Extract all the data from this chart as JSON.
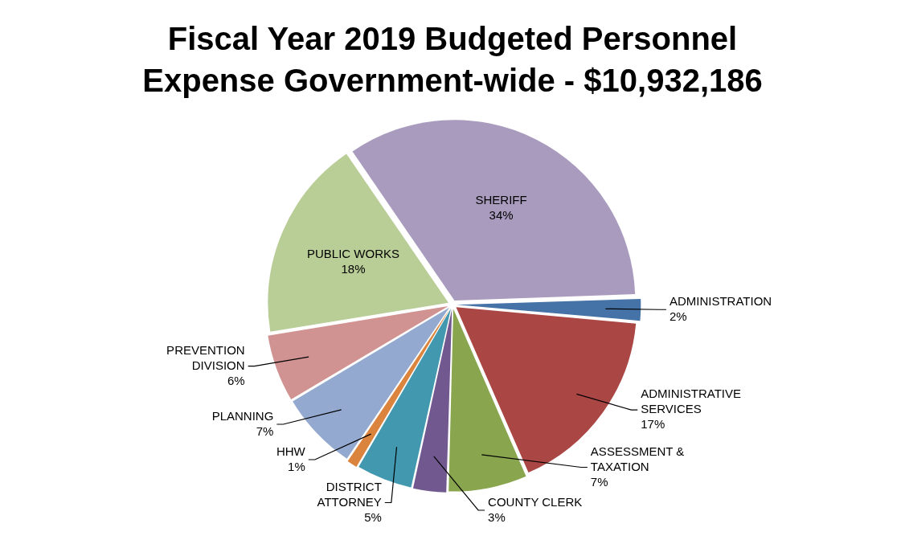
{
  "chart_data": {
    "type": "pie",
    "title": "Fiscal Year 2019 Budgeted Personnel Expense Government-wide - $10,932,186",
    "categories": [
      "ADMINISTRATION",
      "ADMINISTRATIVE SERVICES",
      "ASSESSMENT & TAXATION",
      "COUNTY CLERK",
      "DISTRICT ATTORNEY",
      "HHW",
      "PLANNING",
      "PREVENTION DIVISION",
      "PUBLIC WORKS",
      "SHERIFF"
    ],
    "values": [
      2,
      17,
      7,
      3,
      5,
      1,
      7,
      6,
      18,
      34
    ],
    "value_labels": [
      "2%",
      "17%",
      "7%",
      "3%",
      "5%",
      "1%",
      "7%",
      "6%",
      "18%",
      "34%"
    ],
    "colors": [
      "#4572a7",
      "#aa4643",
      "#89a54e",
      "#71588f",
      "#4198af",
      "#db843d",
      "#93a9cf",
      "#d19392",
      "#b9cd96",
      "#a99bbd"
    ],
    "legend": false
  }
}
